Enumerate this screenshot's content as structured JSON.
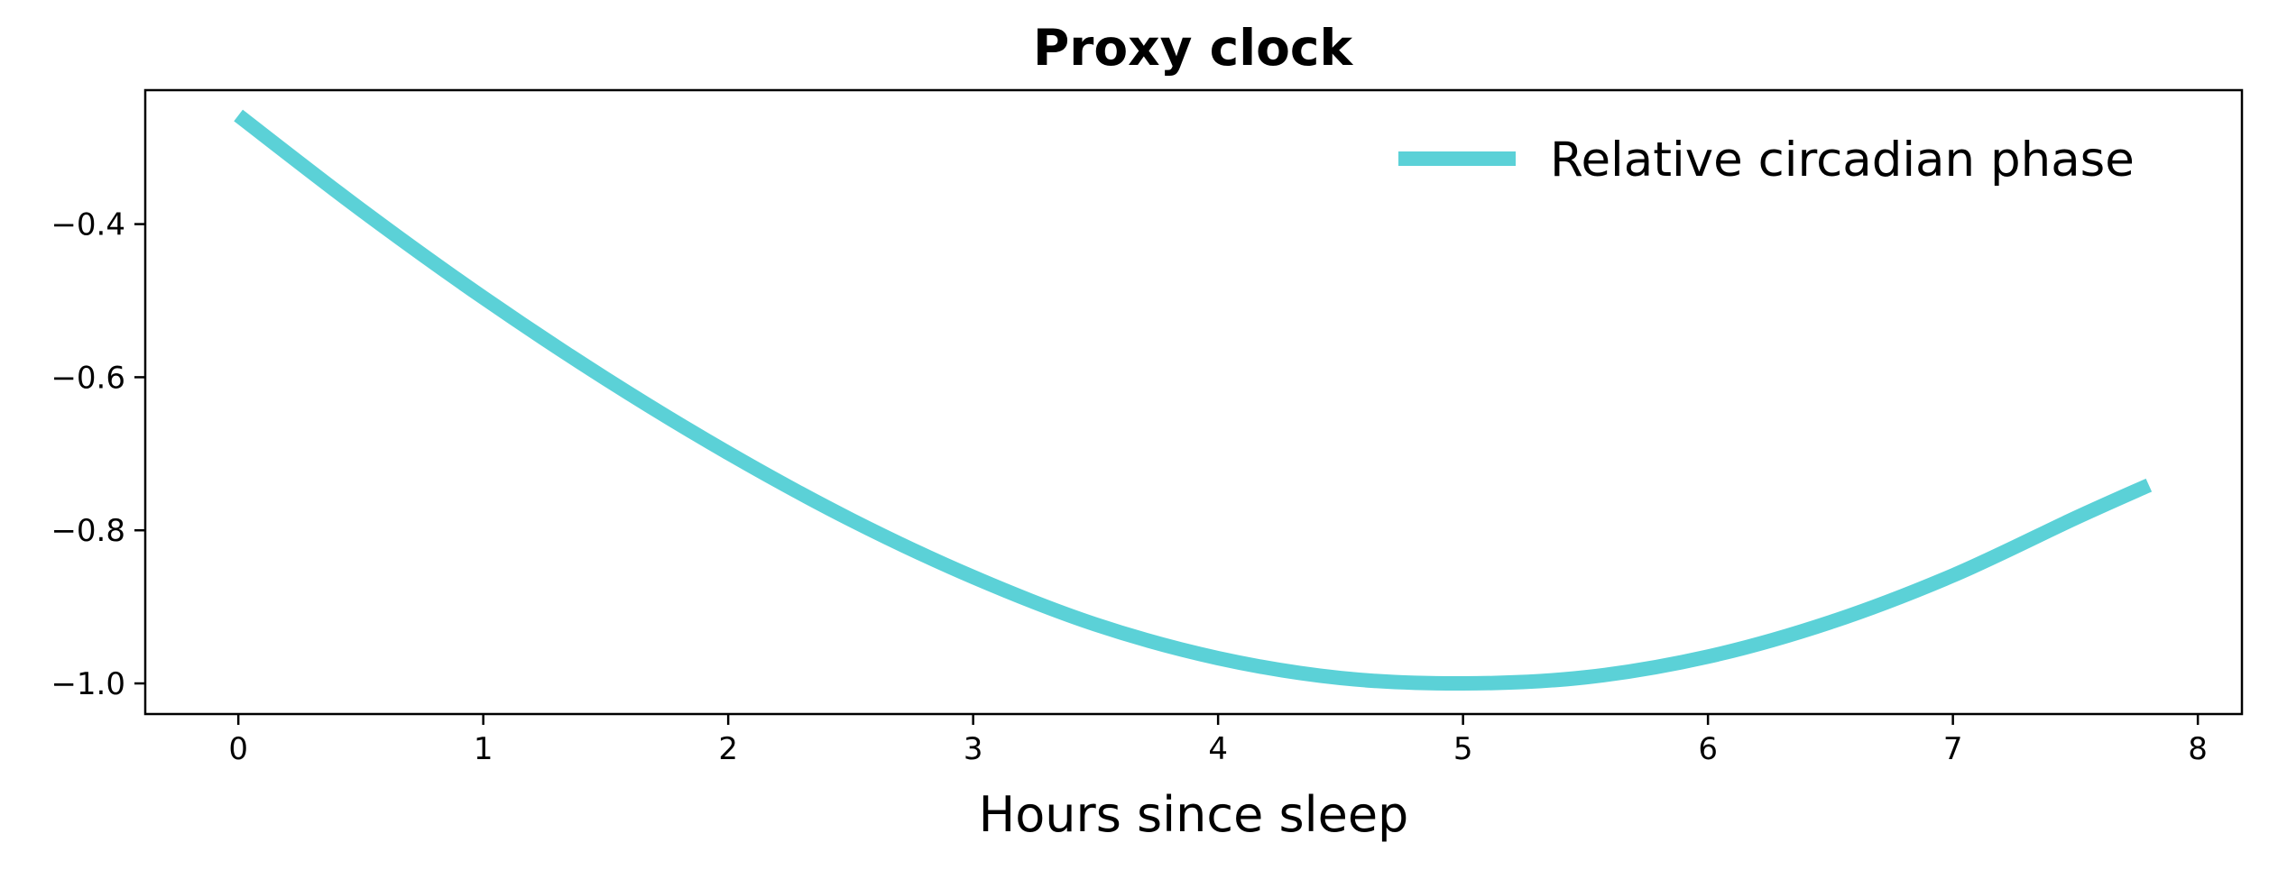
{
  "chart_data": {
    "type": "line",
    "title": "Proxy clock",
    "xlabel": "Hours since sleep",
    "ylabel": "",
    "xlim": [
      -0.38,
      8.18
    ],
    "ylim": [
      -1.04,
      -0.225
    ],
    "xticks": [
      0,
      1,
      2,
      3,
      4,
      5,
      6,
      7,
      8
    ],
    "yticks": [
      -1.0,
      -0.8,
      -0.6,
      -0.4
    ],
    "ytick_labels": [
      "−1.0",
      "−0.8",
      "−0.6",
      "−0.4"
    ],
    "grid": false,
    "legend_position": "top-right",
    "series": [
      {
        "name": "Relative circadian phase",
        "color": "#5bd1d7",
        "x": [
          0,
          0.5,
          1,
          1.5,
          2,
          2.5,
          3,
          3.5,
          4,
          4.5,
          5,
          5.5,
          6,
          6.5,
          7,
          7.5,
          7.8
        ],
        "y": [
          -0.258,
          -0.381,
          -0.496,
          -0.602,
          -0.699,
          -0.786,
          -0.861,
          -0.923,
          -0.967,
          -0.993,
          -1.0,
          -0.992,
          -0.965,
          -0.92,
          -0.859,
          -0.784,
          -0.741
        ]
      }
    ]
  }
}
